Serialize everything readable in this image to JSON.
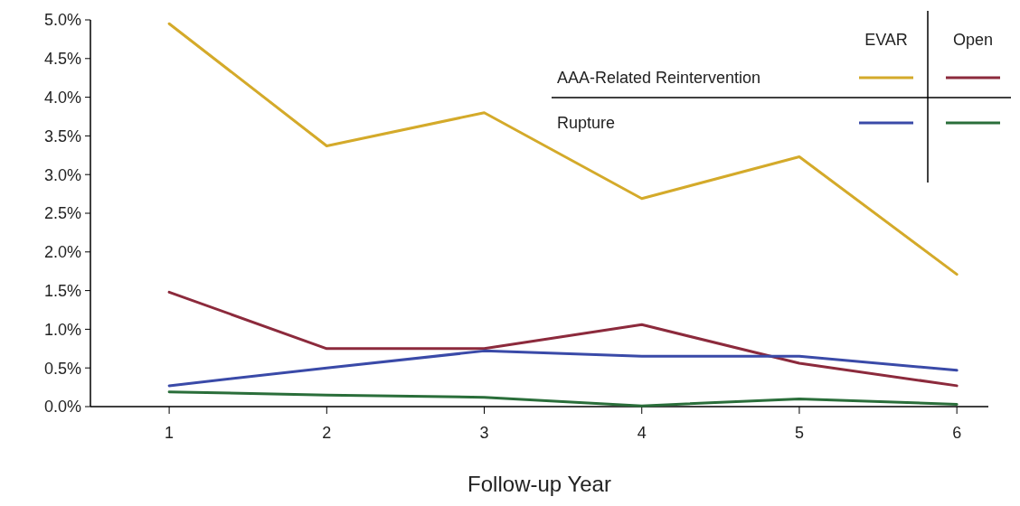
{
  "chart_data": {
    "type": "line",
    "xlabel": "Follow-up Year",
    "x": [
      1,
      2,
      3,
      4,
      5,
      6
    ],
    "xlim": [
      0.5,
      6.2
    ],
    "xticks": [
      1,
      2,
      3,
      4,
      5,
      6
    ],
    "ylim": [
      0,
      5
    ],
    "yticks": [
      {
        "value": 0,
        "label": "0.0%"
      },
      {
        "value": 0.5,
        "label": "0.5%"
      },
      {
        "value": 1,
        "label": "1.0%"
      },
      {
        "value": 1.5,
        "label": "1.5%"
      },
      {
        "value": 2,
        "label": "2.0%"
      },
      {
        "value": 2.5,
        "label": "2.5%"
      },
      {
        "value": 3,
        "label": "3.0%"
      },
      {
        "value": 3.5,
        "label": "3.5%"
      },
      {
        "value": 4,
        "label": "4.0%"
      },
      {
        "value": 4.5,
        "label": "4.5%"
      },
      {
        "value": 5,
        "label": "5.0%"
      }
    ],
    "grid": false,
    "marker": "none",
    "line_style": "solid",
    "annotations": [
      "EVAR",
      "Open",
      "AAA-Related Reintervention",
      "Rupture"
    ],
    "series": [
      {
        "color": "#d4aa2a",
        "values": [
          4.95,
          3.37,
          3.8,
          2.69,
          3.23,
          1.71
        ]
      },
      {
        "color": "#8c2a3c",
        "values": [
          1.48,
          0.75,
          0.75,
          1.06,
          0.56,
          0.27
        ]
      },
      {
        "color": "#3a4aa8",
        "values": [
          0.27,
          0.5,
          0.72,
          0.65,
          0.65,
          0.47
        ]
      },
      {
        "color": "#2a6e3a",
        "values": [
          0.19,
          0.15,
          0.12,
          0.01,
          0.1,
          0.03
        ]
      }
    ]
  }
}
